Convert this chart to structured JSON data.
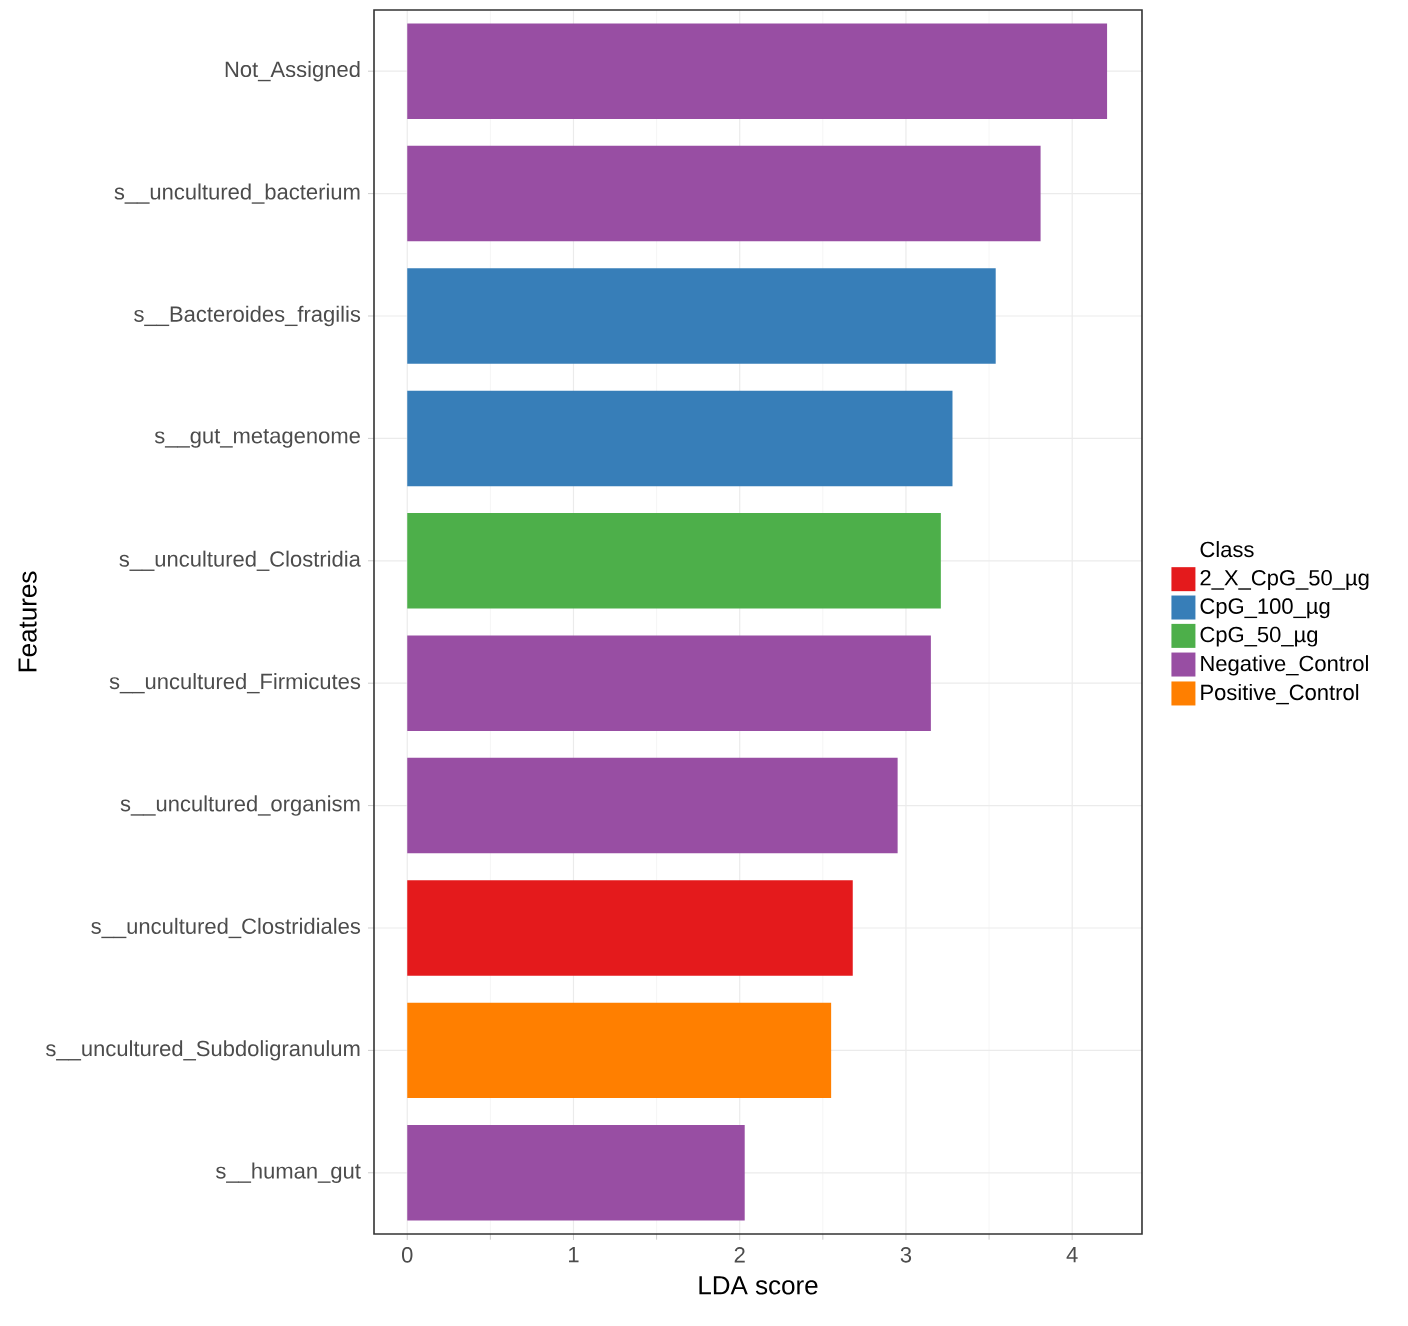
{
  "chart_data": {
    "type": "bar",
    "orientation": "horizontal",
    "xlabel": "LDA score",
    "ylabel": "Features",
    "legend_title": "Class",
    "categories": [
      "Not_Assigned",
      "s__uncultured_bacterium",
      "s__Bacteroides_fragilis",
      "s__gut_metagenome",
      "s__uncultured_Clostridia",
      "s__uncultured_Firmicutes",
      "s__uncultured_organism",
      "s__uncultured_Clostridiales",
      "s__uncultured_Subdoligranulum",
      "s__human_gut"
    ],
    "series": [
      {
        "name": "2_X_CpG_50_µg",
        "color": "#e41a1c",
        "values": [
          null,
          null,
          null,
          null,
          null,
          null,
          null,
          2.68,
          null,
          null
        ]
      },
      {
        "name": "CpG_100_µg",
        "color": "#377eb8",
        "values": [
          null,
          null,
          3.54,
          3.28,
          null,
          null,
          null,
          null,
          null,
          null
        ]
      },
      {
        "name": "CpG_50_µg",
        "color": "#4daf4a",
        "values": [
          null,
          null,
          null,
          null,
          3.21,
          null,
          null,
          null,
          null,
          null
        ]
      },
      {
        "name": "Negative_Control",
        "color": "#984ea3",
        "values": [
          4.21,
          3.81,
          null,
          null,
          null,
          3.15,
          2.95,
          null,
          null,
          2.03
        ]
      },
      {
        "name": "Positive_Control",
        "color": "#ff7f00",
        "values": [
          null,
          null,
          null,
          null,
          null,
          null,
          null,
          null,
          2.55,
          null
        ]
      }
    ],
    "xlim": [
      -0.2,
      4.42
    ],
    "xticks": [
      0,
      1,
      2,
      3,
      4
    ],
    "grid": true,
    "legend": "right"
  }
}
